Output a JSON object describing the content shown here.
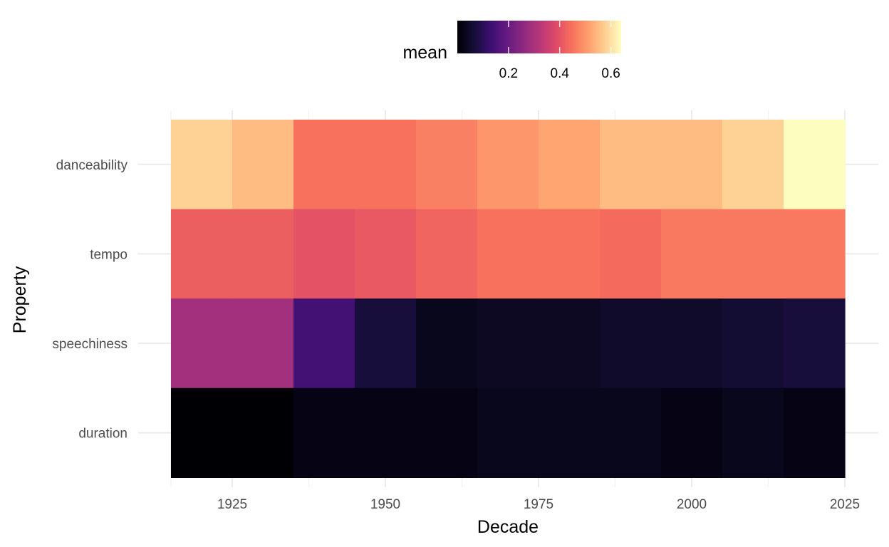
{
  "chart_data": {
    "type": "heatmap",
    "title": "",
    "xlabel": "Decade",
    "ylabel": "Property",
    "x": [
      1920,
      1930,
      1940,
      1950,
      1960,
      1970,
      1980,
      1990,
      2000,
      2010,
      2020
    ],
    "x_ticks": [
      1925,
      1950,
      1975,
      2000,
      2025
    ],
    "x_tick_labels": [
      "1925",
      "1950",
      "1975",
      "2000",
      "2025"
    ],
    "xlim": [
      1915,
      2025
    ],
    "categories": [
      "danceability",
      "tempo",
      "speechiness",
      "duration"
    ],
    "values": [
      [
        0.58,
        0.55,
        0.45,
        0.45,
        0.47,
        0.5,
        0.52,
        0.55,
        0.55,
        0.58,
        0.64
      ],
      [
        0.42,
        0.42,
        0.4,
        0.41,
        0.43,
        0.45,
        0.45,
        0.44,
        0.46,
        0.46,
        0.46
      ],
      [
        0.29,
        0.29,
        0.14,
        0.07,
        0.03,
        0.04,
        0.04,
        0.05,
        0.05,
        0.06,
        0.07
      ],
      [
        0.0,
        0.0,
        0.02,
        0.02,
        0.02,
        0.03,
        0.03,
        0.03,
        0.02,
        0.03,
        0.02
      ]
    ],
    "legend": {
      "title": "mean",
      "position": "top",
      "colormap": "magma",
      "range": [
        0.0,
        0.64
      ],
      "ticks": [
        0.2,
        0.4,
        0.6
      ],
      "tick_labels": [
        "0.2",
        "0.4",
        "0.6"
      ]
    },
    "grid": true
  }
}
